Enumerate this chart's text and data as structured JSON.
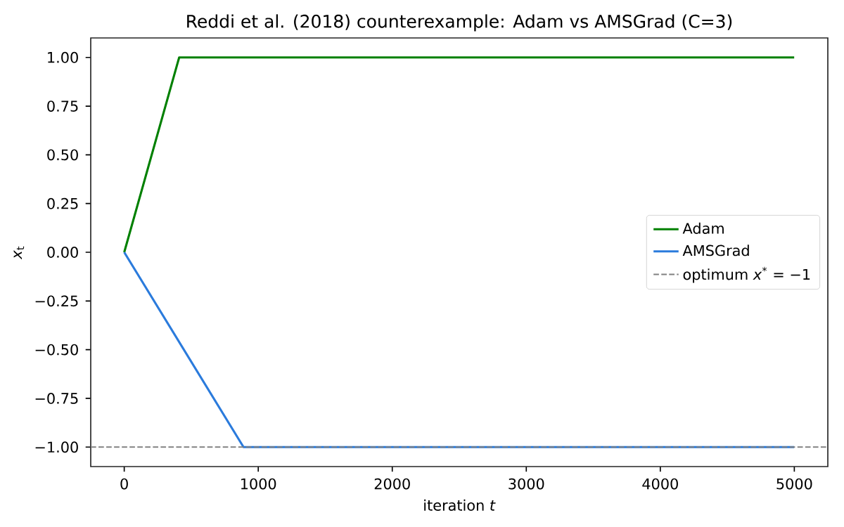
{
  "chart_data": {
    "type": "line",
    "title": "Reddi et al. (2018) counterexample: Adam vs AMSGrad (C=3)",
    "xlabel": "iteration *t*",
    "ylabel": "*x*$_{t}$",
    "series": [
      {
        "name": "Adam",
        "color": "#008000",
        "x": [
          0,
          410,
          4999
        ],
        "values": [
          0,
          1,
          1
        ]
      },
      {
        "name": "AMSGrad",
        "color": "#2b7bdc",
        "x": [
          0,
          890,
          4999
        ],
        "values": [
          0,
          -1,
          -1
        ]
      }
    ],
    "xlim": [
      -250,
      5250
    ],
    "ylim": [
      -1.1,
      1.1
    ],
    "xticks": [
      0,
      1000,
      2000,
      3000,
      4000,
      5000
    ],
    "yticks": [
      {
        "value": -1,
        "label": "−1.00"
      },
      {
        "value": -0.75,
        "label": "−0.75"
      },
      {
        "value": -0.5,
        "label": "−0.50"
      },
      {
        "value": -0.25,
        "label": "−0.25"
      },
      {
        "value": 0,
        "label": "0.00"
      },
      {
        "value": 0.25,
        "label": "0.25"
      },
      {
        "value": 0.5,
        "label": "0.50"
      },
      {
        "value": 0.75,
        "label": "0.75"
      },
      {
        "value": 1,
        "label": "1.00"
      }
    ],
    "ref_lines": [
      {
        "axis": "y",
        "value": -1,
        "label": "optimum *x*$^{*}$ = −1",
        "color": "#808080",
        "line_style": "dashed"
      }
    ],
    "legend": "right"
  }
}
